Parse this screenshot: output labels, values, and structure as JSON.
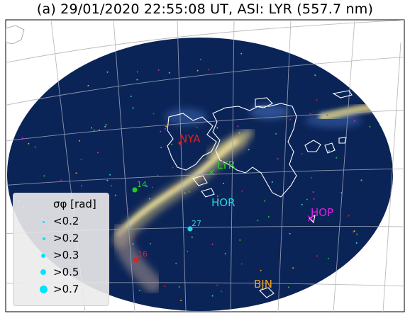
{
  "title": "(a)  29/01/2020 22:55:08 UT, ASI: LYR (557.7 nm)",
  "colors": {
    "sky": "#0b2457",
    "aurora": "#e8d98a",
    "grid": "#b4b4b4",
    "coast": "#ffffff",
    "legend_dot": "#00e5ff"
  },
  "stations": [
    {
      "label": "NYA",
      "color": "#e0201e"
    },
    {
      "label": "LYR",
      "color": "#22cc22"
    },
    {
      "label": "HOR",
      "color": "#27d3e6"
    },
    {
      "label": "HOP",
      "color": "#e020e0"
    },
    {
      "label": "BJN",
      "color": "#f0a020"
    }
  ],
  "satellites": [
    {
      "label": "14",
      "color": "#22cc22"
    },
    {
      "label": "27",
      "color": "#27d3e6"
    },
    {
      "label": "16",
      "color": "#e0201e"
    }
  ],
  "legend": {
    "title": "σφ [rad]",
    "items": [
      "<0.2",
      ">0.2",
      ">0.3",
      ">0.5",
      ">0.7"
    ]
  }
}
